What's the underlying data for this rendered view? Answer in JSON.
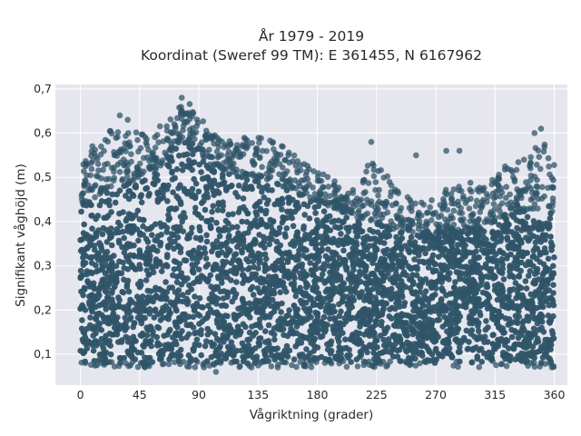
{
  "chart_data": {
    "type": "scatter",
    "title_lines": [
      "År 1979 - 2019",
      "Koordinat (Sweref 99 TM): E 361455, N 6167962"
    ],
    "xlabel": "Vågriktning (grader)",
    "ylabel": "Signifikant våghöjd (m)",
    "xlim": [
      -19,
      370
    ],
    "ylim": [
      0.03,
      0.71
    ],
    "x_ticks": [
      0,
      45,
      90,
      135,
      180,
      225,
      270,
      315,
      360
    ],
    "y_ticks": [
      0.1,
      0.2,
      0.3,
      0.4,
      0.5,
      0.6,
      0.7
    ],
    "y_tick_labels": [
      "0,1",
      "0,2",
      "0,3",
      "0,4",
      "0,5",
      "0,6",
      "0,7"
    ],
    "grid": true,
    "marker_color": "#2f5468",
    "plot_background": "#e5e6ee",
    "density": {
      "x_range": [
        0,
        360
      ],
      "y_floor": 0.08,
      "upper_envelope": [
        {
          "x": 0,
          "y": 0.52
        },
        {
          "x": 10,
          "y": 0.58
        },
        {
          "x": 20,
          "y": 0.6
        },
        {
          "x": 30,
          "y": 0.62
        },
        {
          "x": 45,
          "y": 0.62
        },
        {
          "x": 55,
          "y": 0.6
        },
        {
          "x": 65,
          "y": 0.63
        },
        {
          "x": 75,
          "y": 0.66
        },
        {
          "x": 82,
          "y": 0.67
        },
        {
          "x": 90,
          "y": 0.64
        },
        {
          "x": 100,
          "y": 0.6
        },
        {
          "x": 110,
          "y": 0.58
        },
        {
          "x": 120,
          "y": 0.59
        },
        {
          "x": 135,
          "y": 0.59
        },
        {
          "x": 150,
          "y": 0.58
        },
        {
          "x": 160,
          "y": 0.56
        },
        {
          "x": 175,
          "y": 0.52
        },
        {
          "x": 190,
          "y": 0.5
        },
        {
          "x": 200,
          "y": 0.48
        },
        {
          "x": 210,
          "y": 0.47
        },
        {
          "x": 220,
          "y": 0.54
        },
        {
          "x": 230,
          "y": 0.52
        },
        {
          "x": 240,
          "y": 0.48
        },
        {
          "x": 255,
          "y": 0.44
        },
        {
          "x": 270,
          "y": 0.46
        },
        {
          "x": 280,
          "y": 0.48
        },
        {
          "x": 290,
          "y": 0.52
        },
        {
          "x": 300,
          "y": 0.47
        },
        {
          "x": 315,
          "y": 0.5
        },
        {
          "x": 325,
          "y": 0.54
        },
        {
          "x": 340,
          "y": 0.55
        },
        {
          "x": 350,
          "y": 0.6
        },
        {
          "x": 360,
          "y": 0.54
        }
      ],
      "core_envelope": [
        {
          "x": 0,
          "y": 0.44
        },
        {
          "x": 30,
          "y": 0.48
        },
        {
          "x": 60,
          "y": 0.52
        },
        {
          "x": 80,
          "y": 0.6
        },
        {
          "x": 100,
          "y": 0.52
        },
        {
          "x": 135,
          "y": 0.5
        },
        {
          "x": 170,
          "y": 0.46
        },
        {
          "x": 200,
          "y": 0.42
        },
        {
          "x": 240,
          "y": 0.38
        },
        {
          "x": 270,
          "y": 0.37
        },
        {
          "x": 300,
          "y": 0.38
        },
        {
          "x": 330,
          "y": 0.42
        },
        {
          "x": 360,
          "y": 0.42
        }
      ]
    },
    "outliers": [
      {
        "x": 77,
        "y": 0.68
      },
      {
        "x": 30,
        "y": 0.64
      },
      {
        "x": 36,
        "y": 0.63
      },
      {
        "x": 221,
        "y": 0.58
      },
      {
        "x": 255,
        "y": 0.55
      },
      {
        "x": 278,
        "y": 0.56
      },
      {
        "x": 288,
        "y": 0.56
      },
      {
        "x": 345,
        "y": 0.6
      },
      {
        "x": 350,
        "y": 0.61
      },
      {
        "x": 103,
        "y": 0.06
      },
      {
        "x": 130,
        "y": 0.07
      },
      {
        "x": 150,
        "y": 0.07
      }
    ]
  }
}
